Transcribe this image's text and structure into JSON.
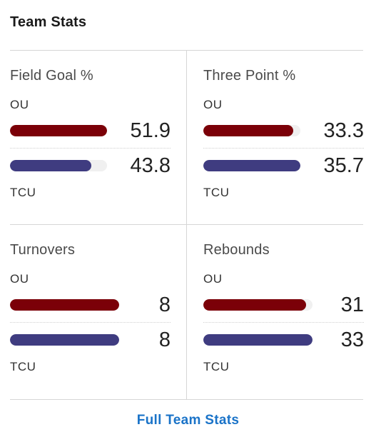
{
  "header": {
    "title": "Team Stats"
  },
  "colors": {
    "ou": "#7b0008",
    "tcu": "#3f3c80",
    "link": "#1a73c8"
  },
  "stats": [
    {
      "title": "Field Goal %",
      "top_team": "OU",
      "bottom_team": "TCU",
      "ou_value": "51.9",
      "tcu_value": "43.8",
      "ou_fill": 1.0,
      "tcu_fill": 0.84
    },
    {
      "title": "Three Point %",
      "top_team": "OU",
      "bottom_team": "TCU",
      "ou_value": "33.3",
      "tcu_value": "35.7",
      "ou_fill": 0.93,
      "tcu_fill": 1.0
    },
    {
      "title": "Turnovers",
      "top_team": "OU",
      "bottom_team": "TCU",
      "ou_value": "8",
      "tcu_value": "8",
      "ou_fill": 1.0,
      "tcu_fill": 1.0
    },
    {
      "title": "Rebounds",
      "top_team": "OU",
      "bottom_team": "TCU",
      "ou_value": "31",
      "tcu_value": "33",
      "ou_fill": 0.94,
      "tcu_fill": 1.0
    }
  ],
  "footer": {
    "link_label": "Full Team Stats"
  }
}
